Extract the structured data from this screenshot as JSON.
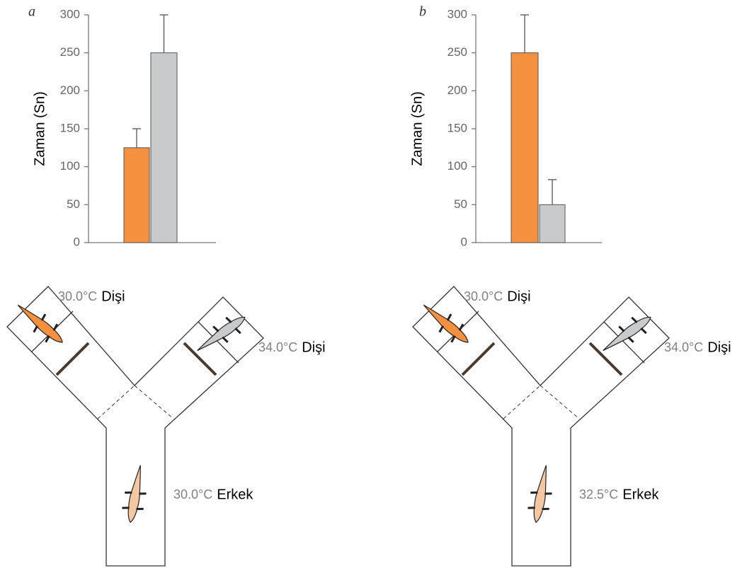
{
  "chart_data": [
    {
      "type": "bar",
      "panel": "a",
      "y_label": "Zaman (Sn)",
      "categories": [
        null,
        null
      ],
      "series": [
        {
          "values": [
            125,
            250
          ],
          "errors": [
            25,
            50
          ],
          "colors": [
            "#f5913e",
            "#c9cacc"
          ]
        }
      ],
      "ylim": [
        0,
        300
      ],
      "yticks": [
        0,
        50,
        100,
        150,
        200,
        250,
        300
      ]
    },
    {
      "type": "bar",
      "panel": "b",
      "y_label": "Zaman (Sn)",
      "categories": [
        null,
        null
      ],
      "series": [
        {
          "values": [
            250,
            50
          ],
          "errors": [
            50,
            33
          ],
          "colors": [
            "#f5913e",
            "#c9cacc"
          ]
        }
      ],
      "ylim": [
        0,
        300
      ],
      "yticks": [
        0,
        50,
        100,
        150,
        200,
        250,
        300
      ]
    }
  ],
  "diagrams": [
    {
      "labels": [
        {
          "temp": "30.0°C",
          "sex": "Dişi"
        },
        {
          "temp": "34.0°C",
          "sex": "Dişi"
        },
        {
          "temp": "30.0°C",
          "sex": "Erkek"
        }
      ]
    },
    {
      "labels": [
        {
          "temp": "30.0°C",
          "sex": "Dişi"
        },
        {
          "temp": "34.0°C",
          "sex": "Dişi"
        },
        {
          "temp": "32.5°C",
          "sex": "Erkek"
        }
      ]
    }
  ]
}
